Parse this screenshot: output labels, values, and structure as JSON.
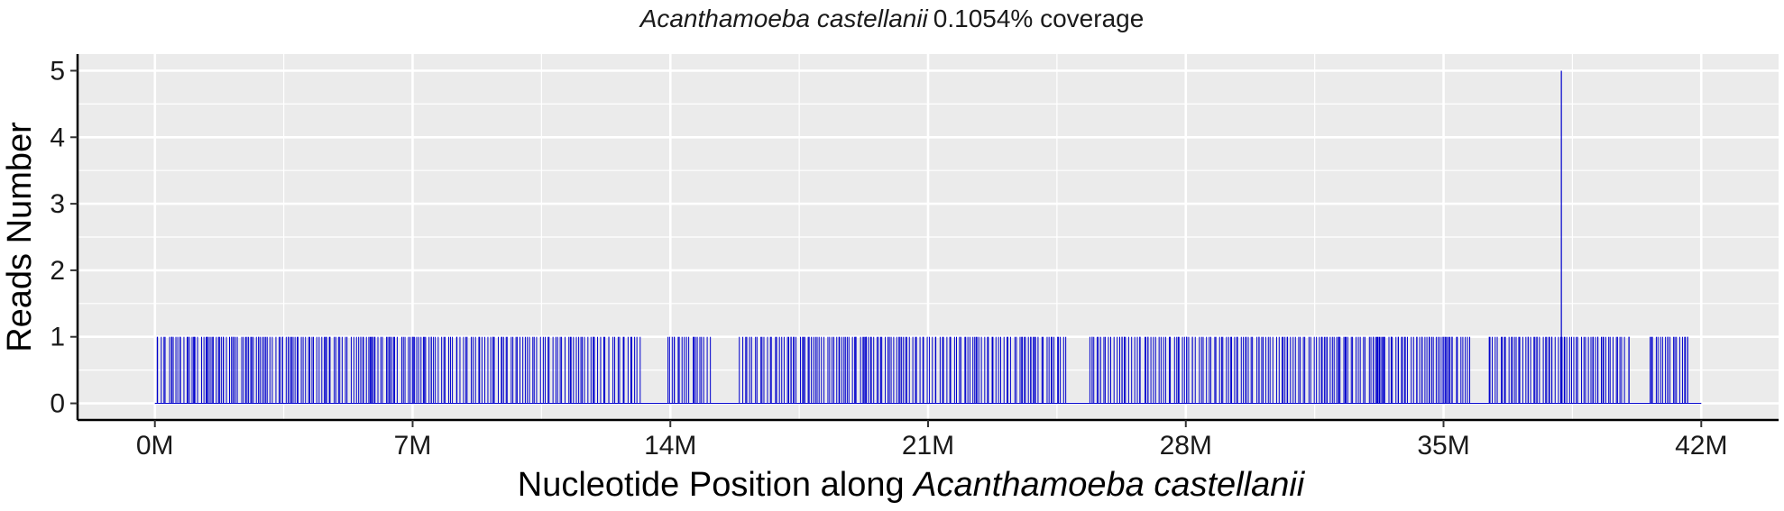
{
  "chart_data": {
    "type": "bar",
    "title_italic": "Acanthamoeba castellanii",
    "title_rest": "0.1054% coverage",
    "xlabel_prefix": "Nucleotide Position along ",
    "xlabel_italic": "Acanthamoeba castellanii",
    "ylabel": "Reads Number",
    "xlim": [
      -2100000,
      44100000
    ],
    "ylim": [
      -0.25,
      5.25
    ],
    "x_ticks": [
      0,
      7000000,
      14000000,
      21000000,
      28000000,
      35000000,
      42000000
    ],
    "x_tick_labels": [
      "0M",
      "7M",
      "14M",
      "21M",
      "28M",
      "35M",
      "42M"
    ],
    "y_ticks": [
      0,
      1,
      2,
      3,
      4,
      5
    ],
    "y_tick_labels": [
      "0",
      "1",
      "2",
      "3",
      "4",
      "5"
    ],
    "baseline": {
      "x_start": 0,
      "x_end": 42000000,
      "value": 0
    },
    "bars": [
      {
        "x": 0,
        "values": [
          1,
          1,
          1,
          1,
          1,
          1,
          1,
          1,
          1,
          1,
          1,
          1,
          1,
          1,
          1,
          1,
          1,
          1,
          1,
          1,
          1,
          1,
          1,
          1,
          1,
          1,
          1,
          1,
          1,
          1
        ]
      }
    ],
    "peak": {
      "x": 38200000,
      "value": 5
    },
    "bar_color": "#0000cd",
    "grid": true,
    "panel_background": "#ebebeb"
  }
}
